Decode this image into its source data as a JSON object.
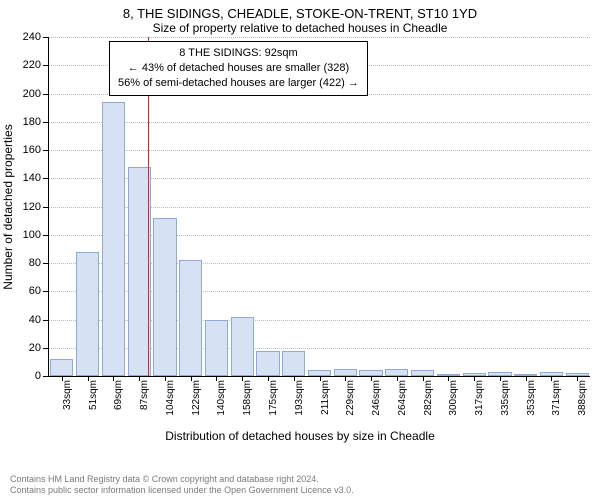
{
  "title": "8, THE SIDINGS, CHEADLE, STOKE-ON-TRENT, ST10 1YD",
  "subtitle": "Size of property relative to detached houses in Cheadle",
  "ylabel": "Number of detached properties",
  "xlabel": "Distribution of detached houses by size in Cheadle",
  "footnote1": "Contains HM Land Registry data © Crown copyright and database right 2024.",
  "footnote2": "Contains public sector information licensed under the Open Government Licence v3.0.",
  "annotation": {
    "line1": "8 THE SIDINGS: 92sqm",
    "line2": "← 43% of detached houses are smaller (328)",
    "line3": "56% of semi-detached houses are larger (422) →"
  },
  "chart": {
    "type": "histogram",
    "ymax": 240,
    "ytick_step": 20,
    "bar_fill": "#d6e1f3",
    "bar_stroke": "#8faad6",
    "grid_color": "#bcbcbc",
    "ref_line_color": "#d62728",
    "ref_line_x_index": 3.35,
    "xticks": [
      "33sqm",
      "51sqm",
      "69sqm",
      "87sqm",
      "104sqm",
      "122sqm",
      "140sqm",
      "158sqm",
      "175sqm",
      "193sqm",
      "211sqm",
      "229sqm",
      "246sqm",
      "264sqm",
      "282sqm",
      "300sqm",
      "317sqm",
      "335sqm",
      "353sqm",
      "371sqm",
      "388sqm"
    ],
    "values": [
      12,
      88,
      194,
      148,
      112,
      82,
      40,
      42,
      18,
      18,
      4,
      5,
      4,
      5,
      4,
      1,
      2,
      3,
      1,
      3,
      2
    ]
  }
}
